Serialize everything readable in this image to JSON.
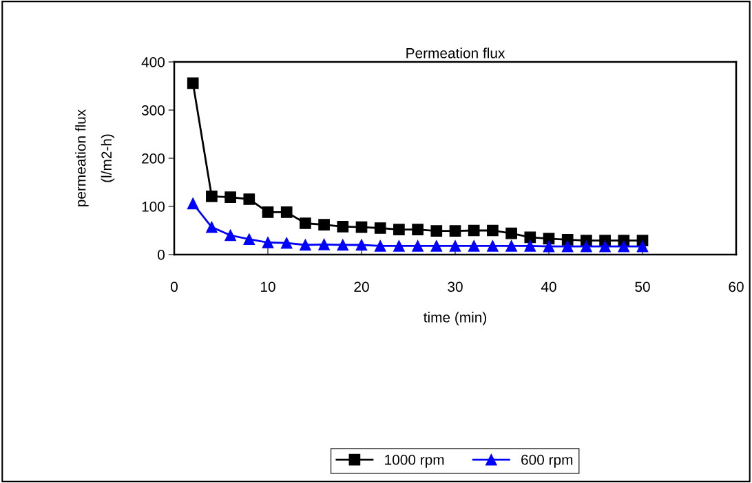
{
  "chart_data": {
    "type": "line",
    "title": "Permeation flux",
    "xlabel": "time (min)",
    "ylabel": "permeation flux\n(l/m2-h)",
    "x": [
      2,
      4,
      6,
      8,
      10,
      12,
      14,
      16,
      18,
      20,
      22,
      24,
      26,
      28,
      30,
      32,
      34,
      36,
      38,
      40,
      42,
      44,
      46,
      48,
      50
    ],
    "series": [
      {
        "name": "1000 rpm",
        "color": "#000000",
        "marker": "square",
        "values": [
          356,
          121,
          119,
          115,
          88,
          88,
          65,
          62,
          58,
          57,
          55,
          52,
          52,
          49,
          49,
          50,
          50,
          44,
          36,
          33,
          31,
          29,
          29,
          29,
          29
        ]
      },
      {
        "name": "600 rpm",
        "color": "#0000ff",
        "marker": "triangle",
        "values": [
          106,
          57,
          40,
          32,
          25,
          24,
          20,
          21,
          20,
          20,
          18,
          18,
          18,
          18,
          18,
          18,
          18,
          18,
          18,
          17,
          17,
          17,
          17,
          17,
          17
        ]
      }
    ],
    "xlim": [
      0,
      60
    ],
    "ylim": [
      0,
      400
    ],
    "xticks": [
      0,
      10,
      20,
      30,
      40,
      50,
      60
    ],
    "yticks": [
      0,
      100,
      200,
      300,
      400
    ],
    "grid": false,
    "legend": "bottom",
    "line_style": "solid"
  }
}
